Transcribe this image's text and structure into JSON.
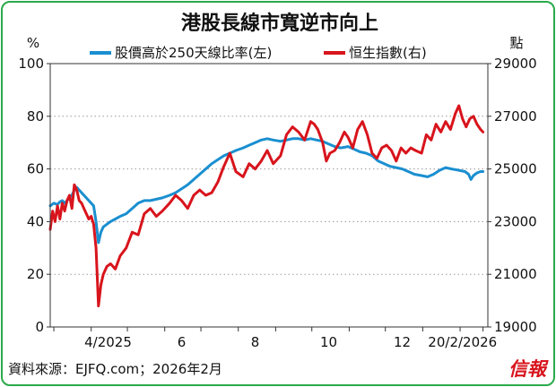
{
  "title": "港股長線市寬逆市向上",
  "left_unit": "%",
  "right_unit": "點",
  "legend": {
    "breadth_label": "股價高於250天線比率(左)",
    "hsi_label": "恒生指數(右)"
  },
  "source": "資料來源：EJFQ.com；2026年2月",
  "logo_text": "信報",
  "chart_data": {
    "type": "line",
    "title": "港股長線市寬逆市向上",
    "x_tick_labels": [
      "4/2025",
      "6",
      "8",
      "10",
      "12",
      "20/2/2026"
    ],
    "left_axis": {
      "label": "%",
      "range": [
        0,
        100
      ],
      "ticks": [
        0,
        20,
        40,
        60,
        80,
        100
      ]
    },
    "right_axis": {
      "label": "點",
      "range": [
        19000,
        29000
      ],
      "ticks": [
        19000,
        21000,
        23000,
        25000,
        27000,
        29000
      ]
    },
    "grid": "horizontal dotted",
    "colors": {
      "breadth": "#1a8fd0",
      "hsi": "#d8141c",
      "frame": "#2aaa4a"
    },
    "series": [
      {
        "name": "股價高於250天線比率(左)",
        "axis": "left",
        "points": [
          [
            "2025-02-26",
            46
          ],
          [
            "2025-03-01",
            47
          ],
          [
            "2025-03-04",
            46.5
          ],
          [
            "2025-03-06",
            47.5
          ],
          [
            "2025-03-08",
            48
          ],
          [
            "2025-03-10",
            47
          ],
          [
            "2025-03-12",
            48
          ],
          [
            "2025-03-14",
            49
          ],
          [
            "2025-03-16",
            50
          ],
          [
            "2025-03-18",
            52
          ],
          [
            "2025-03-20",
            53
          ],
          [
            "2025-03-22",
            52
          ],
          [
            "2025-03-24",
            51
          ],
          [
            "2025-03-26",
            50
          ],
          [
            "2025-03-28",
            49
          ],
          [
            "2025-03-30",
            48
          ],
          [
            "2025-04-01",
            47
          ],
          [
            "2025-04-03",
            46
          ],
          [
            "2025-04-05",
            40
          ],
          [
            "2025-04-07",
            32
          ],
          [
            "2025-04-09",
            36
          ],
          [
            "2025-04-11",
            38
          ],
          [
            "2025-04-14",
            39
          ],
          [
            "2025-04-17",
            40
          ],
          [
            "2025-04-21",
            41
          ],
          [
            "2025-04-25",
            42
          ],
          [
            "2025-04-30",
            43
          ],
          [
            "2025-05-05",
            45
          ],
          [
            "2025-05-10",
            47
          ],
          [
            "2025-05-15",
            48
          ],
          [
            "2025-05-20",
            48
          ],
          [
            "2025-05-25",
            48.5
          ],
          [
            "2025-05-30",
            49
          ],
          [
            "2025-06-05",
            50
          ],
          [
            "2025-06-10",
            51
          ],
          [
            "2025-06-15",
            52.5
          ],
          [
            "2025-06-20",
            54
          ],
          [
            "2025-06-25",
            56
          ],
          [
            "2025-06-30",
            58
          ],
          [
            "2025-07-05",
            60
          ],
          [
            "2025-07-10",
            62
          ],
          [
            "2025-07-15",
            63.5
          ],
          [
            "2025-07-20",
            65
          ],
          [
            "2025-07-25",
            66
          ],
          [
            "2025-07-30",
            67
          ],
          [
            "2025-08-05",
            68
          ],
          [
            "2025-08-10",
            69
          ],
          [
            "2025-08-15",
            70
          ],
          [
            "2025-08-20",
            71
          ],
          [
            "2025-08-25",
            71.5
          ],
          [
            "2025-08-30",
            71
          ],
          [
            "2025-09-05",
            70.5
          ],
          [
            "2025-09-10",
            71
          ],
          [
            "2025-09-15",
            71.5
          ],
          [
            "2025-09-20",
            71.5
          ],
          [
            "2025-09-25",
            71
          ],
          [
            "2025-09-30",
            71.5
          ],
          [
            "2025-10-05",
            71
          ],
          [
            "2025-10-10",
            70.5
          ],
          [
            "2025-10-15",
            69.5
          ],
          [
            "2025-10-20",
            68.5
          ],
          [
            "2025-10-25",
            68
          ],
          [
            "2025-10-31",
            68.5
          ],
          [
            "2025-11-05",
            67.5
          ],
          [
            "2025-11-10",
            66.5
          ],
          [
            "2025-11-15",
            66
          ],
          [
            "2025-11-20",
            65
          ],
          [
            "2025-11-25",
            63
          ],
          [
            "2025-11-30",
            62
          ],
          [
            "2025-12-05",
            61
          ],
          [
            "2025-12-10",
            60.5
          ],
          [
            "2025-12-15",
            60
          ],
          [
            "2025-12-20",
            59
          ],
          [
            "2025-12-25",
            58
          ],
          [
            "2025-12-31",
            57.5
          ],
          [
            "2026-01-05",
            57
          ],
          [
            "2026-01-10",
            58
          ],
          [
            "2026-01-15",
            59.5
          ],
          [
            "2026-01-20",
            60.5
          ],
          [
            "2026-01-25",
            60
          ],
          [
            "2026-01-31",
            59.5
          ],
          [
            "2026-02-05",
            59
          ],
          [
            "2026-02-08",
            58
          ],
          [
            "2026-02-10",
            56
          ],
          [
            "2026-02-12",
            57.5
          ],
          [
            "2026-02-15",
            58.5
          ],
          [
            "2026-02-18",
            59
          ],
          [
            "2026-02-20",
            59
          ]
        ]
      },
      {
        "name": "恒生指數(右)",
        "axis": "right",
        "points": [
          [
            "2025-02-26",
            22700
          ],
          [
            "2025-02-28",
            23400
          ],
          [
            "2025-03-02",
            23000
          ],
          [
            "2025-03-04",
            23600
          ],
          [
            "2025-03-06",
            23100
          ],
          [
            "2025-03-08",
            23700
          ],
          [
            "2025-03-10",
            23400
          ],
          [
            "2025-03-12",
            23800
          ],
          [
            "2025-03-14",
            24000
          ],
          [
            "2025-03-16",
            23500
          ],
          [
            "2025-03-18",
            24400
          ],
          [
            "2025-03-20",
            24200
          ],
          [
            "2025-03-22",
            23800
          ],
          [
            "2025-03-24",
            23700
          ],
          [
            "2025-03-26",
            23500
          ],
          [
            "2025-03-28",
            23300
          ],
          [
            "2025-03-30",
            23100
          ],
          [
            "2025-04-01",
            23200
          ],
          [
            "2025-04-03",
            22900
          ],
          [
            "2025-04-05",
            22000
          ],
          [
            "2025-04-07",
            19800
          ],
          [
            "2025-04-09",
            20600
          ],
          [
            "2025-04-11",
            21000
          ],
          [
            "2025-04-14",
            21300
          ],
          [
            "2025-04-17",
            21400
          ],
          [
            "2025-04-21",
            21200
          ],
          [
            "2025-04-25",
            21700
          ],
          [
            "2025-04-30",
            22000
          ],
          [
            "2025-05-05",
            22600
          ],
          [
            "2025-05-10",
            22500
          ],
          [
            "2025-05-15",
            23300
          ],
          [
            "2025-05-20",
            23500
          ],
          [
            "2025-05-25",
            23200
          ],
          [
            "2025-05-30",
            23400
          ],
          [
            "2025-06-05",
            23700
          ],
          [
            "2025-06-10",
            24000
          ],
          [
            "2025-06-15",
            23800
          ],
          [
            "2025-06-20",
            23500
          ],
          [
            "2025-06-25",
            24000
          ],
          [
            "2025-06-30",
            24200
          ],
          [
            "2025-07-05",
            24000
          ],
          [
            "2025-07-10",
            24100
          ],
          [
            "2025-07-15",
            24500
          ],
          [
            "2025-07-20",
            25100
          ],
          [
            "2025-07-25",
            25600
          ],
          [
            "2025-07-30",
            24900
          ],
          [
            "2025-08-05",
            24700
          ],
          [
            "2025-08-10",
            25200
          ],
          [
            "2025-08-15",
            25000
          ],
          [
            "2025-08-20",
            25300
          ],
          [
            "2025-08-25",
            25700
          ],
          [
            "2025-08-30",
            25200
          ],
          [
            "2025-09-05",
            25500
          ],
          [
            "2025-09-10",
            26300
          ],
          [
            "2025-09-15",
            26600
          ],
          [
            "2025-09-20",
            26400
          ],
          [
            "2025-09-25",
            26100
          ],
          [
            "2025-09-30",
            26800
          ],
          [
            "2025-10-03",
            26700
          ],
          [
            "2025-10-06",
            26500
          ],
          [
            "2025-10-10",
            26000
          ],
          [
            "2025-10-13",
            25300
          ],
          [
            "2025-10-16",
            25600
          ],
          [
            "2025-10-20",
            25700
          ],
          [
            "2025-10-24",
            26000
          ],
          [
            "2025-10-28",
            26400
          ],
          [
            "2025-10-31",
            26200
          ],
          [
            "2025-11-04",
            25800
          ],
          [
            "2025-11-08",
            26500
          ],
          [
            "2025-11-12",
            26800
          ],
          [
            "2025-11-16",
            26300
          ],
          [
            "2025-11-20",
            25600
          ],
          [
            "2025-11-24",
            25400
          ],
          [
            "2025-11-28",
            25800
          ],
          [
            "2025-12-02",
            25900
          ],
          [
            "2025-12-06",
            25700
          ],
          [
            "2025-12-10",
            25300
          ],
          [
            "2025-12-14",
            25800
          ],
          [
            "2025-12-18",
            25600
          ],
          [
            "2025-12-22",
            25800
          ],
          [
            "2025-12-26",
            25700
          ],
          [
            "2025-12-31",
            25600
          ],
          [
            "2026-01-04",
            26300
          ],
          [
            "2026-01-08",
            26100
          ],
          [
            "2026-01-12",
            26700
          ],
          [
            "2026-01-16",
            26400
          ],
          [
            "2026-01-20",
            26800
          ],
          [
            "2026-01-24",
            26500
          ],
          [
            "2026-01-28",
            27100
          ],
          [
            "2026-01-31",
            27400
          ],
          [
            "2026-02-03",
            26900
          ],
          [
            "2026-02-06",
            26600
          ],
          [
            "2026-02-09",
            26900
          ],
          [
            "2026-02-12",
            27000
          ],
          [
            "2026-02-15",
            26700
          ],
          [
            "2026-02-18",
            26500
          ],
          [
            "2026-02-20",
            26400
          ]
        ]
      }
    ]
  }
}
